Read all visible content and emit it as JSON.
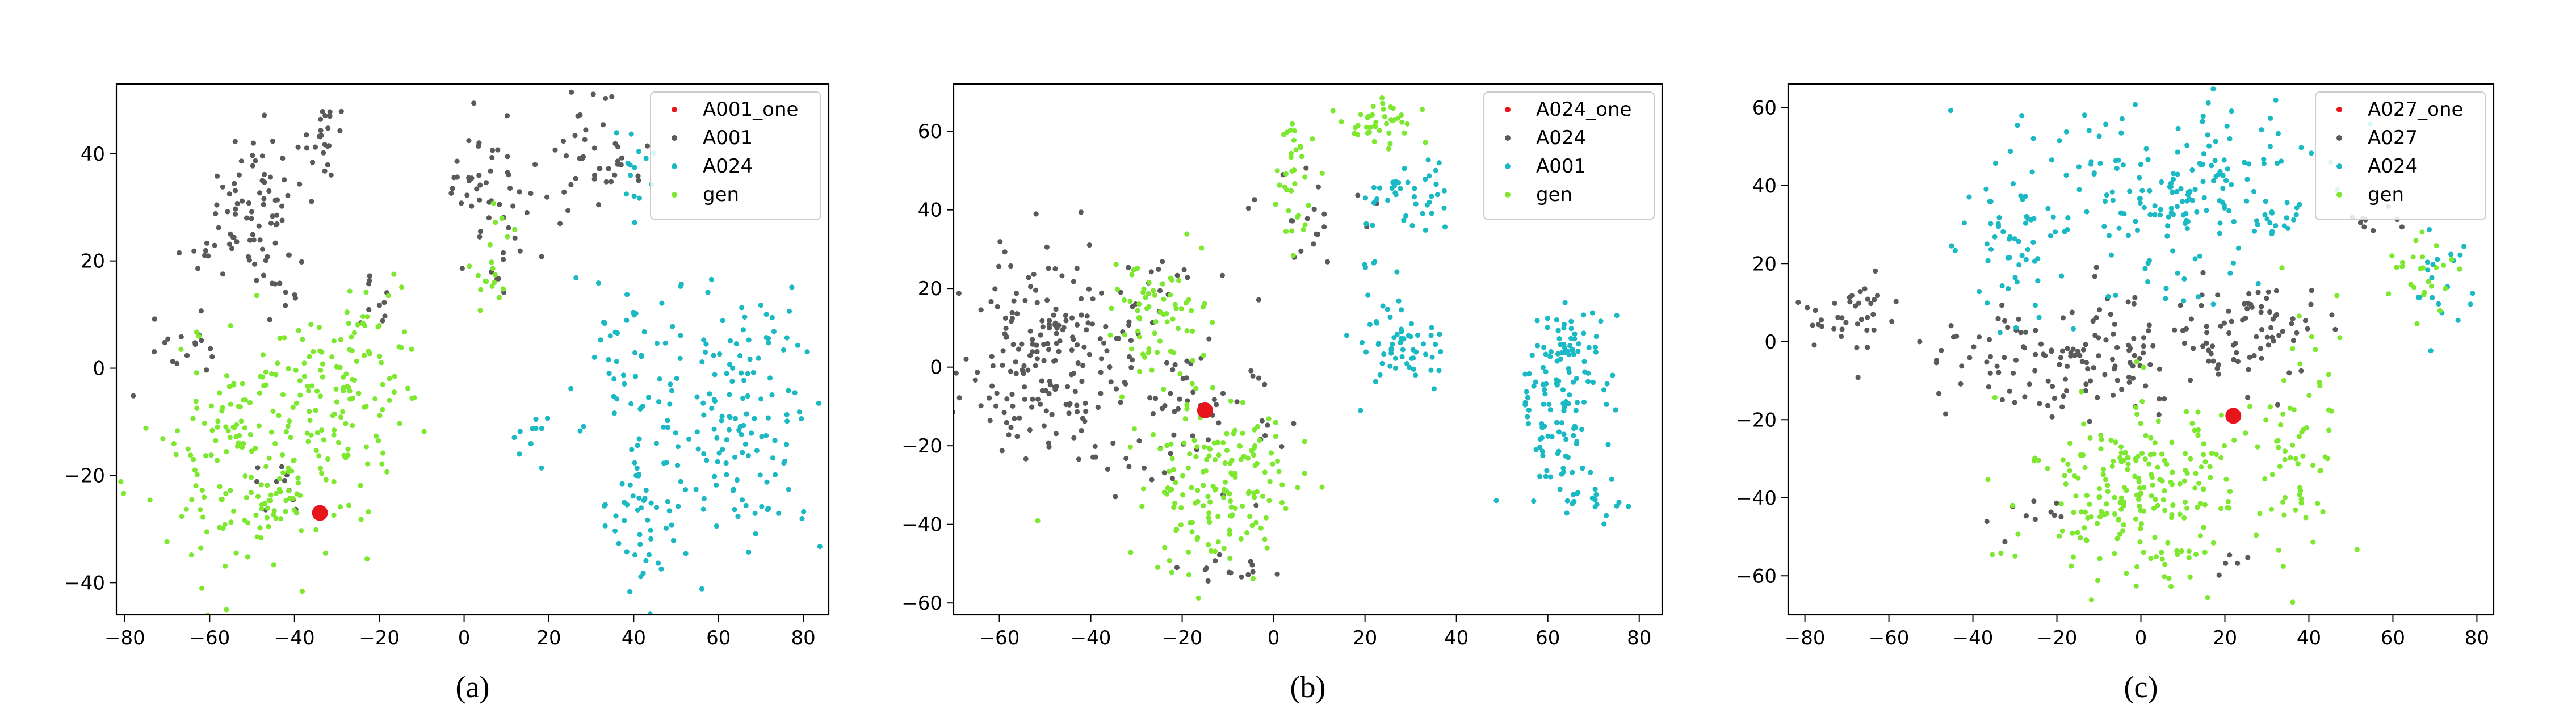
{
  "colors": {
    "highlight": "#e8141b",
    "gray": "#5a5a5a",
    "cyan": "#1ab9c4",
    "gen": "#7ee830"
  },
  "chart_data": [
    {
      "type": "scatter",
      "caption": "(a)",
      "xlim": [
        -82,
        86
      ],
      "ylim": [
        -46,
        53
      ],
      "xticks": [
        -80,
        -60,
        -40,
        -20,
        0,
        20,
        40,
        60,
        80
      ],
      "yticks": [
        -40,
        -20,
        0,
        20,
        40
      ],
      "grid": false,
      "legend_position": "top-right",
      "series": [
        {
          "name": "A001_one",
          "color": "#e8141b",
          "marker": "large",
          "points": [
            [
              -34,
              -27
            ]
          ]
        },
        {
          "name": "A001",
          "color": "#5a5a5a",
          "clusters": [
            {
              "cx": -50,
              "cy": 30,
              "sx": 6,
              "sy": 7,
              "n": 70
            },
            {
              "cx": -33,
              "cy": 44,
              "sx": 3,
              "sy": 3,
              "n": 24
            },
            {
              "cx": -60,
              "cy": 21,
              "sx": 3,
              "sy": 2,
              "n": 8
            },
            {
              "cx": -43,
              "cy": 15,
              "sx": 3,
              "sy": 3,
              "n": 12
            },
            {
              "cx": -65,
              "cy": 3,
              "sx": 5,
              "sy": 4,
              "n": 16
            },
            {
              "cx": 5,
              "cy": 33,
              "sx": 5,
              "sy": 6,
              "n": 50
            },
            {
              "cx": 30,
              "cy": 38,
              "sx": 6,
              "sy": 6,
              "n": 45
            },
            {
              "cx": -20,
              "cy": 12,
              "sx": 4,
              "sy": 4,
              "n": 10
            },
            {
              "cx": -45,
              "cy": -20,
              "sx": 4,
              "sy": 4,
              "n": 10
            }
          ]
        },
        {
          "name": "A024",
          "color": "#1ab9c4",
          "clusters": [
            {
              "cx": 65,
              "cy": -10,
              "sx": 10,
              "sy": 12,
              "n": 150
            },
            {
              "cx": 42,
              "cy": -25,
              "sx": 4,
              "sy": 8,
              "n": 50
            },
            {
              "cx": 38,
              "cy": 2,
              "sx": 6,
              "sy": 8,
              "n": 40
            },
            {
              "cx": 15,
              "cy": -12,
              "sx": 2,
              "sy": 3,
              "n": 10
            },
            {
              "cx": 40,
              "cy": 38,
              "sx": 3,
              "sy": 5,
              "n": 14
            }
          ]
        },
        {
          "name": "gen",
          "color": "#7ee830",
          "clusters": [
            {
              "cx": -50,
              "cy": -17,
              "sx": 12,
              "sy": 12,
              "n": 190
            },
            {
              "cx": -25,
              "cy": -2,
              "sx": 8,
              "sy": 10,
              "n": 110
            },
            {
              "cx": 5,
              "cy": 15,
              "sx": 2,
              "sy": 3,
              "n": 14
            },
            {
              "cx": 8,
              "cy": 25,
              "sx": 2,
              "sy": 3,
              "n": 5
            }
          ]
        }
      ]
    },
    {
      "type": "scatter",
      "caption": "(b)",
      "xlim": [
        -70,
        85
      ],
      "ylim": [
        -63,
        72
      ],
      "xticks": [
        -60,
        -40,
        -20,
        0,
        20,
        40,
        60,
        80
      ],
      "yticks": [
        -60,
        -40,
        -20,
        0,
        20,
        40,
        60
      ],
      "grid": false,
      "legend_position": "top-right",
      "series": [
        {
          "name": "A024_one",
          "color": "#e8141b",
          "marker": "large",
          "points": [
            [
              -15,
              -11
            ]
          ]
        },
        {
          "name": "A024",
          "color": "#5a5a5a",
          "clusters": [
            {
              "cx": -48,
              "cy": 2,
              "sx": 9,
              "sy": 14,
              "n": 190
            },
            {
              "cx": -20,
              "cy": -8,
              "sx": 10,
              "sy": 13,
              "n": 70
            },
            {
              "cx": -10,
              "cy": -52,
              "sx": 5,
              "sy": 3,
              "n": 14
            },
            {
              "cx": 8,
              "cy": 38,
              "sx": 6,
              "sy": 6,
              "n": 20
            },
            {
              "cx": -20,
              "cy": 25,
              "sx": 4,
              "sy": 3,
              "n": 8
            }
          ]
        },
        {
          "name": "A001",
          "color": "#1ab9c4",
          "clusters": [
            {
              "cx": 27,
              "cy": 5,
              "sx": 5,
              "sy": 6,
              "n": 60
            },
            {
              "cx": 30,
              "cy": 42,
              "sx": 5,
              "sy": 5,
              "n": 40
            },
            {
              "cx": 63,
              "cy": -10,
              "sx": 5,
              "sy": 12,
              "n": 110
            },
            {
              "cx": 65,
              "cy": 5,
              "sx": 5,
              "sy": 6,
              "n": 30
            },
            {
              "cx": 70,
              "cy": -35,
              "sx": 3,
              "sy": 2,
              "n": 15
            },
            {
              "cx": 20,
              "cy": 25,
              "sx": 2,
              "sy": 2,
              "n": 4
            }
          ]
        },
        {
          "name": "gen",
          "color": "#7ee830",
          "clusters": [
            {
              "cx": -25,
              "cy": 13,
              "sx": 5,
              "sy": 7,
              "n": 70
            },
            {
              "cx": -12,
              "cy": -30,
              "sx": 9,
              "sy": 10,
              "n": 160
            },
            {
              "cx": 4,
              "cy": 55,
              "sx": 3,
              "sy": 5,
              "n": 20
            },
            {
              "cx": 23,
              "cy": 62,
              "sx": 4,
              "sy": 3,
              "n": 40
            },
            {
              "cx": 5,
              "cy": 38,
              "sx": 2,
              "sy": 4,
              "n": 14
            }
          ]
        }
      ]
    },
    {
      "type": "scatter",
      "caption": "(c)",
      "xlim": [
        -84,
        84
      ],
      "ylim": [
        -70,
        66
      ],
      "xticks": [
        -80,
        -60,
        -40,
        -20,
        0,
        20,
        40,
        60,
        80
      ],
      "yticks": [
        -60,
        -40,
        -20,
        0,
        20,
        40,
        60
      ],
      "grid": false,
      "legend_position": "top-right",
      "series": [
        {
          "name": "A027_one",
          "color": "#e8141b",
          "marker": "large",
          "points": [
            [
              22,
              -19
            ]
          ]
        },
        {
          "name": "A027",
          "color": "#5a5a5a",
          "clusters": [
            {
              "cx": -70,
              "cy": 5,
              "sx": 6,
              "sy": 5,
              "n": 40
            },
            {
              "cx": -15,
              "cy": -5,
              "sx": 18,
              "sy": 8,
              "n": 150
            },
            {
              "cx": 25,
              "cy": 5,
              "sx": 10,
              "sy": 6,
              "n": 60
            },
            {
              "cx": -25,
              "cy": -45,
              "sx": 5,
              "sy": 5,
              "n": 10
            },
            {
              "cx": 22,
              "cy": -57,
              "sx": 2,
              "sy": 3,
              "n": 5
            },
            {
              "cx": 55,
              "cy": 30,
              "sx": 4,
              "sy": 3,
              "n": 10
            }
          ]
        },
        {
          "name": "A024",
          "color": "#1ab9c4",
          "clusters": [
            {
              "cx": 10,
              "cy": 38,
              "sx": 17,
              "sy": 12,
              "n": 190
            },
            {
              "cx": -30,
              "cy": 30,
              "sx": 7,
              "sy": 13,
              "n": 60
            },
            {
              "cx": 72,
              "cy": 15,
              "sx": 5,
              "sy": 7,
              "n": 20
            }
          ]
        },
        {
          "name": "gen",
          "color": "#7ee830",
          "clusters": [
            {
              "cx": 0,
              "cy": -38,
              "sx": 14,
              "sy": 12,
              "n": 230
            },
            {
              "cx": 38,
              "cy": -25,
              "sx": 6,
              "sy": 15,
              "n": 60
            },
            {
              "cx": 68,
              "cy": 17,
              "sx": 5,
              "sy": 6,
              "n": 25
            }
          ]
        }
      ]
    }
  ]
}
